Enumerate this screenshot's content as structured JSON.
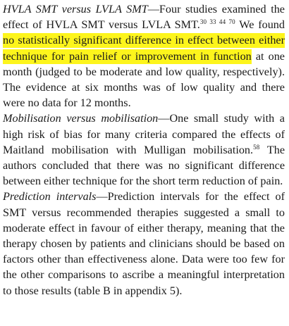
{
  "paragraphs": [
    {
      "heading": "HVLA SMT versus LVLA SMT",
      "dash": "—",
      "text_before": "Four studies examined the effect of HVLA SMT versus LVLA SMT.",
      "refs": "30 33 44 70",
      "text_pre_highlight": " We found ",
      "highlight": "no statistically significant difference in effect between either technique for pain relief or improvement in function",
      "highlight_color": "#fdf51c",
      "text_after": " at one month (judged to be moderate and low quality, respectively). The evidence at six months was of low quality and there were no data for 12 months."
    },
    {
      "heading": "Mobilisation versus mobilisation",
      "dash": "—",
      "text_before": "One small study with a high risk of bias for many criteria compared the effects of Maitland mobilisation with Mulligan mobilisation.",
      "refs": "58",
      "text_after": " The authors concluded that there was no significant difference between either technique for the short term reduction of pain."
    },
    {
      "heading": "Prediction intervals",
      "dash": "—",
      "text": "Prediction intervals for the effect of SMT versus recommended therapies suggested a small to moderate effect in favour of either therapy, meaning that the therapy chosen by patients and clinicians should be based on factors other than effectiveness alone. Data were too few for the other comparisons to ascribe a meaningful interpretation to those results (table B in appendix 5)."
    }
  ]
}
